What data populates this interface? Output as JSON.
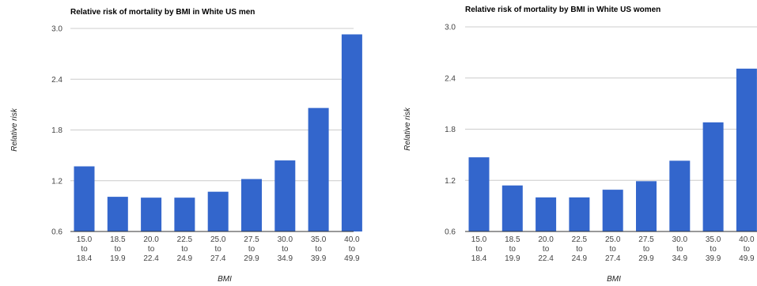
{
  "chart_data": [
    {
      "type": "bar",
      "title": "Relative risk of mortality by BMI in White US men",
      "xlabel": "BMI",
      "ylabel": "Relative risk",
      "ylim": [
        0.6,
        3.0
      ],
      "yticks": [
        "0.6",
        "1.2",
        "1.8",
        "2.4",
        "3.0"
      ],
      "grid": true,
      "categories": [
        [
          "15.0",
          "to",
          "18.4"
        ],
        [
          "18.5",
          "to",
          "19.9"
        ],
        [
          "20.0",
          "to",
          "22.4"
        ],
        [
          "22.5",
          "to",
          "24.9"
        ],
        [
          "25.0",
          "to",
          "27.4"
        ],
        [
          "27.5",
          "to",
          "29.9"
        ],
        [
          "30.0",
          "to",
          "34.9"
        ],
        [
          "35.0",
          "to",
          "39.9"
        ],
        [
          "40.0",
          "to",
          "49.9"
        ]
      ],
      "values": [
        1.37,
        1.01,
        1.0,
        1.0,
        1.07,
        1.22,
        1.44,
        2.06,
        2.93
      ],
      "color": "#3366cc"
    },
    {
      "type": "bar",
      "title": "Relative risk of mortality by BMI in White US women",
      "xlabel": "BMI",
      "ylabel": "Relative risk",
      "ylim": [
        0.6,
        3.0
      ],
      "yticks": [
        "0.6",
        "1.2",
        "1.8",
        "2.4",
        "3.0"
      ],
      "grid": true,
      "categories": [
        [
          "15.0",
          "to",
          "18.4"
        ],
        [
          "18.5",
          "to",
          "19.9"
        ],
        [
          "20.0",
          "to",
          "22.4"
        ],
        [
          "22.5",
          "to",
          "24.9"
        ],
        [
          "25.0",
          "to",
          "27.4"
        ],
        [
          "27.5",
          "to",
          "29.9"
        ],
        [
          "30.0",
          "to",
          "34.9"
        ],
        [
          "35.0",
          "to",
          "39.9"
        ],
        [
          "40.0",
          "to",
          "49.9"
        ]
      ],
      "values": [
        1.47,
        1.14,
        1.0,
        1.0,
        1.09,
        1.19,
        1.43,
        1.88,
        2.51
      ],
      "color": "#3366cc"
    }
  ]
}
